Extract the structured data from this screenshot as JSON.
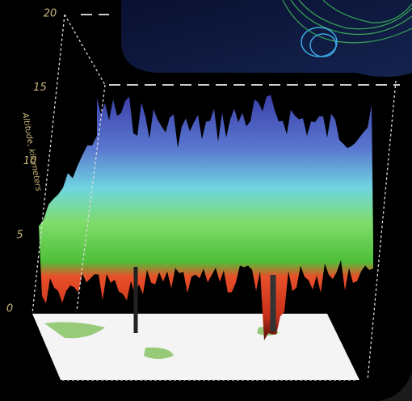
{
  "axis": {
    "label": "Altitude, kilometers",
    "ticks": [
      0,
      5,
      10,
      15,
      20
    ]
  }
}
